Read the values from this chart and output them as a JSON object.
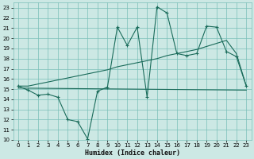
{
  "xlabel": "Humidex (Indice chaleur)",
  "xlim": [
    -0.5,
    23.5
  ],
  "ylim": [
    10,
    23.5
  ],
  "xticks": [
    0,
    1,
    2,
    3,
    4,
    5,
    6,
    7,
    8,
    9,
    10,
    11,
    12,
    13,
    14,
    15,
    16,
    17,
    18,
    19,
    20,
    21,
    22,
    23
  ],
  "yticks": [
    10,
    11,
    12,
    13,
    14,
    15,
    16,
    17,
    18,
    19,
    20,
    21,
    22,
    23
  ],
  "bg_color": "#cce8e4",
  "line_color": "#1a6b5a",
  "grid_color": "#7abfb8",
  "line1_x": [
    0,
    1,
    2,
    3,
    4,
    5,
    6,
    7,
    8,
    9,
    10,
    11,
    12,
    13,
    14,
    15,
    16,
    17,
    18,
    19,
    20,
    21,
    22,
    23
  ],
  "line1_y": [
    15.3,
    14.9,
    14.4,
    14.5,
    14.2,
    12.0,
    11.8,
    10.1,
    14.8,
    15.2,
    21.1,
    19.3,
    21.1,
    14.2,
    23.1,
    22.5,
    18.5,
    18.3,
    18.5,
    21.2,
    21.1,
    18.7,
    18.2,
    15.3
  ],
  "line2_x": [
    0,
    1,
    2,
    3,
    4,
    5,
    6,
    7,
    8,
    9,
    10,
    11,
    12,
    13,
    14,
    15,
    16,
    17,
    18,
    19,
    20,
    21,
    22,
    23
  ],
  "line2_y": [
    15.3,
    15.3,
    15.5,
    15.7,
    15.9,
    16.1,
    16.3,
    16.5,
    16.7,
    16.9,
    17.2,
    17.4,
    17.6,
    17.8,
    18.0,
    18.3,
    18.5,
    18.7,
    18.9,
    19.2,
    19.5,
    19.8,
    18.5,
    15.3
  ],
  "line3_x": [
    0,
    23
  ],
  "line3_y": [
    15.1,
    14.9
  ]
}
